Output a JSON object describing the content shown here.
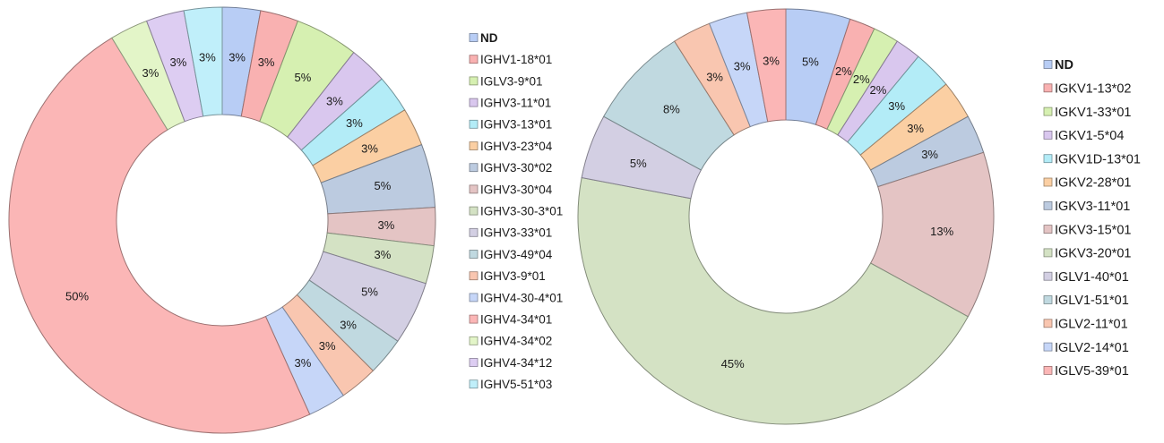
{
  "chart_data": [
    {
      "type": "pie",
      "subtype": "donut",
      "legend_position": "right",
      "categories": [
        "ND",
        "IGHV1-18*01",
        "IGLV3-9*01",
        "IGHV3-11*01",
        "IGHV3-13*01",
        "IGHV3-23*04",
        "IGHV3-30*02",
        "IGHV3-30*04",
        "IGHV3-30-3*01",
        "IGHV3-33*01",
        "IGHV3-49*04",
        "IGHV3-9*01",
        "IGHV4-30-4*01",
        "IGHV4-34*01",
        "IGHV4-34*02",
        "IGHV4-34*12",
        "IGHV5-51*03"
      ],
      "values": [
        3,
        3,
        5,
        3,
        3,
        3,
        5,
        3,
        3,
        5,
        3,
        3,
        3,
        50,
        3,
        3,
        3
      ],
      "labels": [
        "3%",
        "3%",
        "5%",
        "3%",
        "3%",
        "3%",
        "5%",
        "3%",
        "3%",
        "5%",
        "3%",
        "3%",
        "3%",
        "50%",
        "3%",
        "3%",
        "3%"
      ],
      "slice_order": [
        0,
        1,
        2,
        3,
        4,
        5,
        6,
        7,
        8,
        9,
        10,
        11,
        12,
        13,
        14,
        15,
        16
      ],
      "colors": [
        "#b8cdf5",
        "#f9b1b1",
        "#d6f0b1",
        "#d9c7ee",
        "#b3ecf7",
        "#fbcfa3",
        "#bccbe0",
        "#e4c4c4",
        "#d4e2c4",
        "#d3cfe3",
        "#c0d9e0",
        "#f9c6b0",
        "#c6d6f8",
        "#fbb6b6",
        "#e3f5c8",
        "#ddcdf2",
        "#c0effa"
      ]
    },
    {
      "type": "pie",
      "subtype": "donut",
      "legend_position": "right",
      "categories": [
        "ND",
        "IGKV1-13*02",
        "IGKV1-33*01",
        "IGKV1-5*04",
        "IGKV1D-13*01",
        "IGKV2-28*01",
        "IGKV3-11*01",
        "IGKV3-15*01",
        "IGKV3-20*01",
        "IGLV1-40*01",
        "IGLV1-51*01",
        "IGLV2-11*01",
        "IGLV2-14*01",
        "IGLV5-39*01"
      ],
      "values": [
        5,
        2,
        2,
        2,
        3,
        3,
        3,
        13,
        45,
        5,
        8,
        3,
        3,
        3
      ],
      "labels": [
        "5%",
        "2%",
        "2%",
        "2%",
        "3%",
        "3%",
        "3%",
        "13%",
        "45%",
        "5%",
        "8%",
        "3%",
        "3%",
        "3%"
      ],
      "slice_order": [
        0,
        1,
        2,
        3,
        4,
        5,
        6,
        7,
        8,
        9,
        10,
        11,
        12,
        13
      ],
      "colors": [
        "#b8cdf5",
        "#f9b1b1",
        "#d6f0b1",
        "#d9c7ee",
        "#b3ecf7",
        "#fbcfa3",
        "#bccbe0",
        "#e4c4c4",
        "#d4e2c4",
        "#d3cfe3",
        "#c0d9e0",
        "#f9c6b0",
        "#c6d6f8",
        "#fbb6b6"
      ]
    }
  ]
}
